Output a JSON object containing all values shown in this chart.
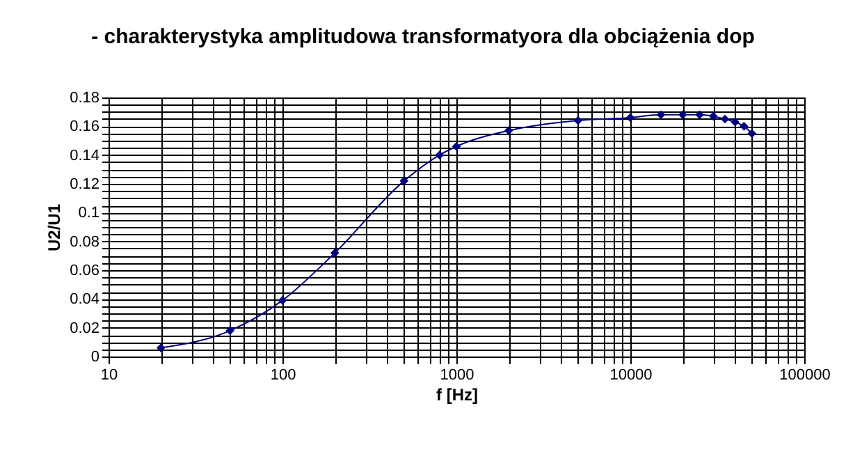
{
  "chart_data": {
    "type": "line",
    "title": "- charakterystyka amplitudowa transformatyora dla obciążenia dop",
    "xlabel": "f [Hz]",
    "ylabel": "U2/U1",
    "x": [
      20,
      50,
      100,
      200,
      500,
      800,
      1000,
      2000,
      5000,
      10000,
      15000,
      20000,
      25000,
      30000,
      35000,
      40000,
      45000,
      50000
    ],
    "series": [
      {
        "color": "#000080",
        "values": [
          0.006,
          0.018,
          0.039,
          0.072,
          0.122,
          0.14,
          0.146,
          0.157,
          0.164,
          0.166,
          0.168,
          0.168,
          0.168,
          0.167,
          0.165,
          0.163,
          0.16,
          0.155
        ]
      }
    ],
    "log": "x",
    "xlim": [
      10,
      100000
    ],
    "ylim": [
      0,
      0.18
    ],
    "xticks": [
      10,
      {
        "value": 20,
        "label": null
      },
      {
        "value": 30,
        "label": null
      },
      {
        "value": 40,
        "label": null
      },
      {
        "value": 50,
        "label": null
      },
      {
        "value": 60,
        "label": null
      },
      {
        "value": 70,
        "label": null
      },
      {
        "value": 80,
        "label": null
      },
      {
        "value": 90,
        "label": null
      },
      100,
      {
        "value": 200,
        "label": null
      },
      {
        "value": 300,
        "label": null
      },
      {
        "value": 400,
        "label": null
      },
      {
        "value": 500,
        "label": null
      },
      {
        "value": 600,
        "label": null
      },
      {
        "value": 700,
        "label": null
      },
      {
        "value": 800,
        "label": null
      },
      {
        "value": 900,
        "label": null
      },
      1000,
      {
        "value": 2000,
        "label": null
      },
      {
        "value": 3000,
        "label": null
      },
      {
        "value": 4000,
        "label": null
      },
      {
        "value": 5000,
        "label": null
      },
      {
        "value": 6000,
        "label": null
      },
      {
        "value": 7000,
        "label": null
      },
      {
        "value": 8000,
        "label": null
      },
      {
        "value": 9000,
        "label": null
      },
      10000,
      {
        "value": 20000,
        "label": null
      },
      {
        "value": 30000,
        "label": null
      },
      {
        "value": 40000,
        "label": null
      },
      {
        "value": 50000,
        "label": null
      },
      {
        "value": 60000,
        "label": null
      },
      {
        "value": 70000,
        "label": null
      },
      {
        "value": 80000,
        "label": null
      },
      {
        "value": 90000,
        "label": null
      },
      100000
    ],
    "yticks": [
      0,
      {
        "value": 0.005,
        "label": null
      },
      {
        "value": 0.01,
        "label": null
      },
      {
        "value": 0.015,
        "label": null
      },
      0.02,
      {
        "value": 0.025,
        "label": null
      },
      {
        "value": 0.03,
        "label": null
      },
      {
        "value": 0.035,
        "label": null
      },
      0.04,
      {
        "value": 0.045,
        "label": null
      },
      {
        "value": 0.05,
        "label": null
      },
      {
        "value": 0.055,
        "label": null
      },
      0.06,
      {
        "value": 0.065,
        "label": null
      },
      {
        "value": 0.07,
        "label": null
      },
      {
        "value": 0.075,
        "label": null
      },
      0.08,
      {
        "value": 0.085,
        "label": null
      },
      {
        "value": 0.09,
        "label": null
      },
      {
        "value": 0.095,
        "label": null
      },
      0.1,
      {
        "value": 0.105,
        "label": null
      },
      {
        "value": 0.11,
        "label": null
      },
      {
        "value": 0.115,
        "label": null
      },
      0.12,
      {
        "value": 0.125,
        "label": null
      },
      {
        "value": 0.13,
        "label": null
      },
      {
        "value": 0.135,
        "label": null
      },
      0.14,
      {
        "value": 0.145,
        "label": null
      },
      {
        "value": 0.15,
        "label": null
      },
      {
        "value": 0.155,
        "label": null
      },
      0.16,
      {
        "value": 0.165,
        "label": null
      },
      {
        "value": 0.17,
        "label": null
      },
      {
        "value": 0.175,
        "label": null
      },
      0.18
    ],
    "grid": true,
    "marker": "diamond",
    "line_style": "solid"
  }
}
